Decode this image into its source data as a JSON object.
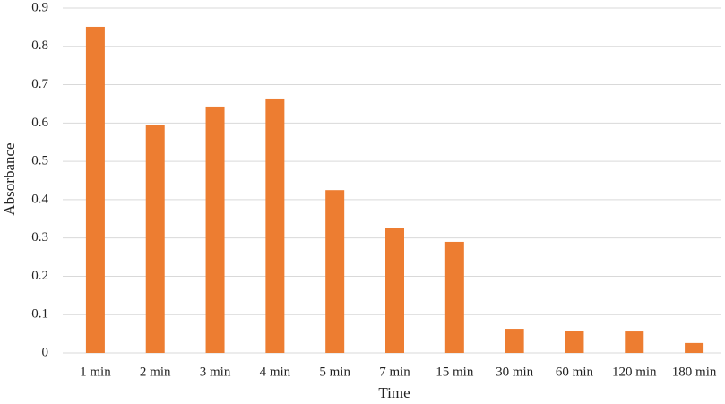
{
  "chart_data": {
    "type": "bar",
    "x_label": "Time",
    "y_label": "Absorbance",
    "categories": [
      "1 min",
      "2 min",
      "3 min",
      "4 min",
      "5 min",
      "7 min",
      "15 min",
      "30 min",
      "60 min",
      "120 min",
      "180 min"
    ],
    "values": [
      0.851,
      0.596,
      0.643,
      0.664,
      0.425,
      0.327,
      0.29,
      0.063,
      0.058,
      0.056,
      0.026
    ],
    "color": "#ed7d31",
    "ylim": [
      0,
      0.9
    ],
    "yticks": [
      0,
      0.1,
      0.2,
      0.3,
      0.4,
      0.5,
      0.6,
      0.7,
      0.8,
      0.9
    ],
    "grid": true
  }
}
